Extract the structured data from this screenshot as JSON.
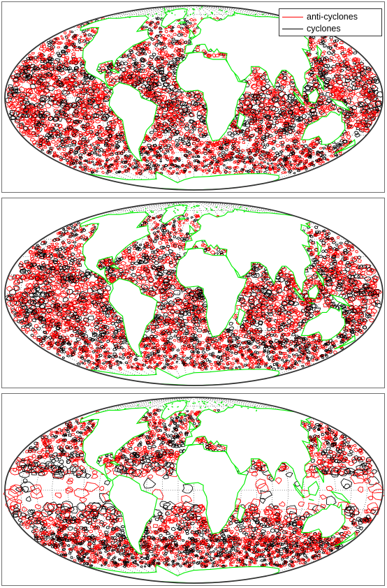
{
  "figure": {
    "projection": "mollweide",
    "panel_count": 3
  },
  "legend": {
    "items": [
      {
        "label": "anti-cyclones",
        "color": "#ff0000"
      },
      {
        "label": "cyclones",
        "color": "#000000"
      }
    ]
  },
  "colors": {
    "coastline": "#00ee00",
    "graticule": "#000000",
    "frame": "#555555",
    "anticyclone": "#ff0000",
    "cyclone": "#000000"
  },
  "panels": [
    {
      "id": "top",
      "eddy_density": "high"
    },
    {
      "id": "middle",
      "eddy_density": "high"
    },
    {
      "id": "bottom",
      "eddy_density": "lower",
      "tropical_band_sparse": true
    }
  ]
}
